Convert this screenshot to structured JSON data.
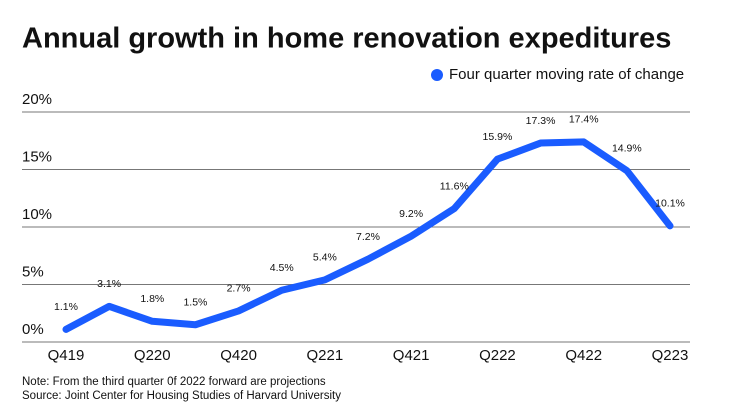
{
  "chart_data": {
    "type": "line",
    "title": "Annual growth in home renovation expeditures",
    "categories": [
      "Q419",
      null,
      "Q220",
      null,
      "Q420",
      null,
      "Q221",
      null,
      "Q421",
      null,
      "Q222",
      null,
      "Q422",
      null,
      "Q223"
    ],
    "series": [
      {
        "name": "Four quarter moving rate of change",
        "color": "#1a5cff",
        "values": [
          1.1,
          3.1,
          1.8,
          1.5,
          2.7,
          4.5,
          5.4,
          7.2,
          9.2,
          11.6,
          15.9,
          17.3,
          17.4,
          14.9,
          10.1
        ],
        "value_labels": [
          "1.1%",
          "3.1%",
          "1.8%",
          "1.5%",
          "2.7%",
          "4.5%",
          "5.4%",
          "7.2%",
          "9.2%",
          "11.6%",
          "15.9%",
          "17.3%",
          "17.4%",
          "14.9%",
          "10.1%"
        ]
      }
    ],
    "ylim": [
      0,
      20
    ],
    "yticks": [
      {
        "value": 0,
        "label": "0%"
      },
      {
        "value": 5,
        "label": "5%"
      },
      {
        "value": 10,
        "label": "10%"
      },
      {
        "value": 15,
        "label": "15%"
      },
      {
        "value": 20,
        "label": "20%"
      }
    ],
    "grid": true,
    "legend": "top-right",
    "notes": [
      "Note: From the third quarter 0f 2022 forward are projections",
      "Source: Joint Center for Housing Studies of Harvard University"
    ]
  }
}
